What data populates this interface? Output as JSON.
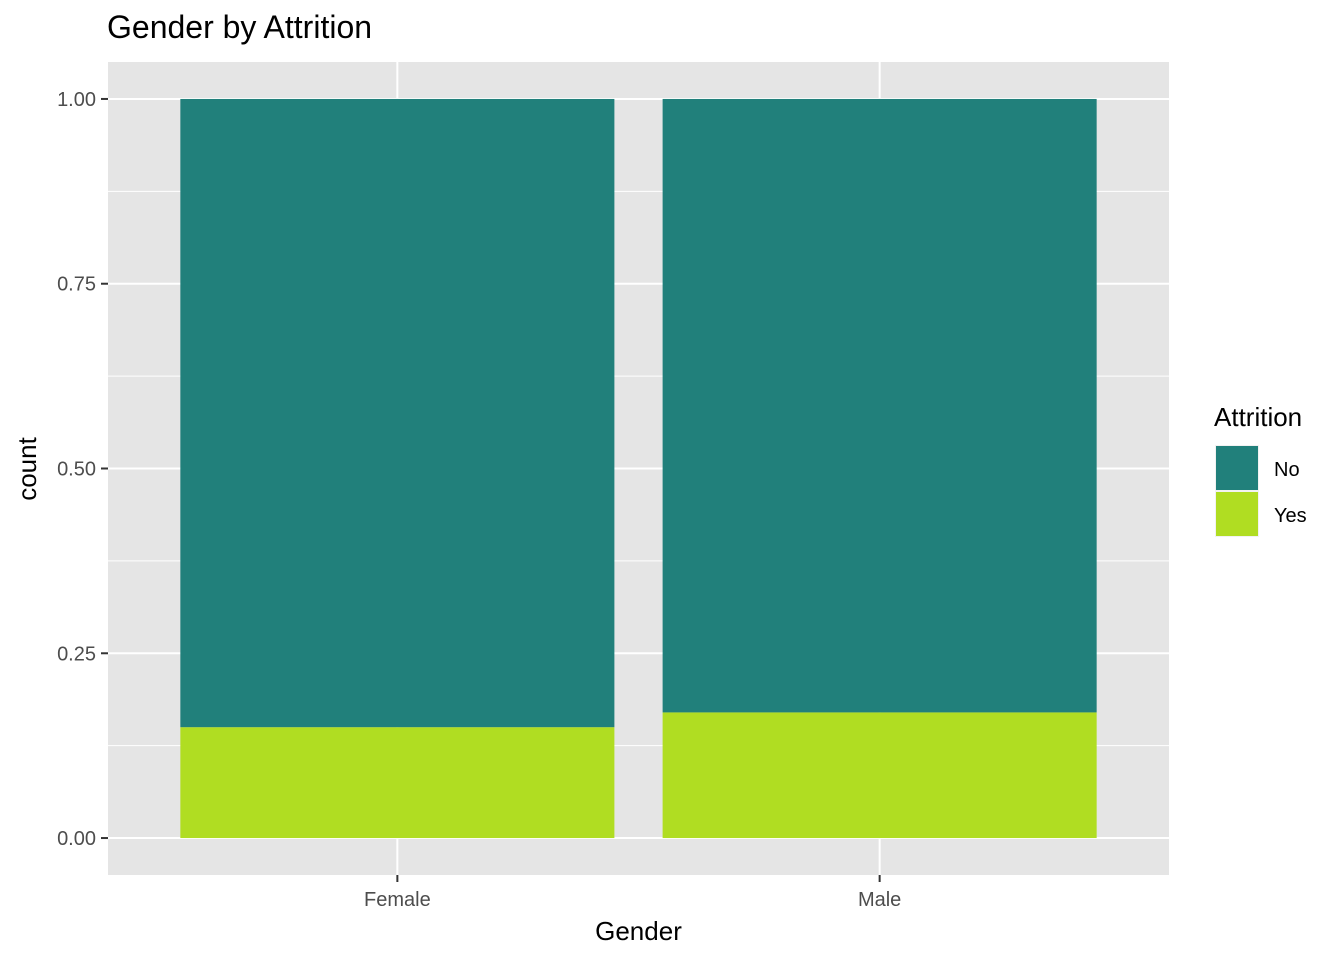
{
  "chart_data": {
    "type": "bar",
    "stacked": true,
    "title": "Gender by Attrition",
    "xlabel": "Gender",
    "ylabel": "count",
    "categories": [
      "Female",
      "Male"
    ],
    "series": [
      {
        "name": "No",
        "color": "#21807B",
        "values": [
          0.85,
          0.83
        ]
      },
      {
        "name": "Yes",
        "color": "#B0DD22",
        "values": [
          0.15,
          0.17
        ]
      }
    ],
    "ylim": [
      -0.05,
      1.05
    ],
    "yticks": [
      0,
      0.25,
      0.5,
      0.75,
      1
    ],
    "ytick_labels": [
      "0.00",
      "0.25",
      "0.50",
      "0.75",
      "1.00"
    ],
    "legend": {
      "title": "Attrition",
      "position": "right"
    },
    "grid": true,
    "panel_background": "#E5E5E5"
  }
}
